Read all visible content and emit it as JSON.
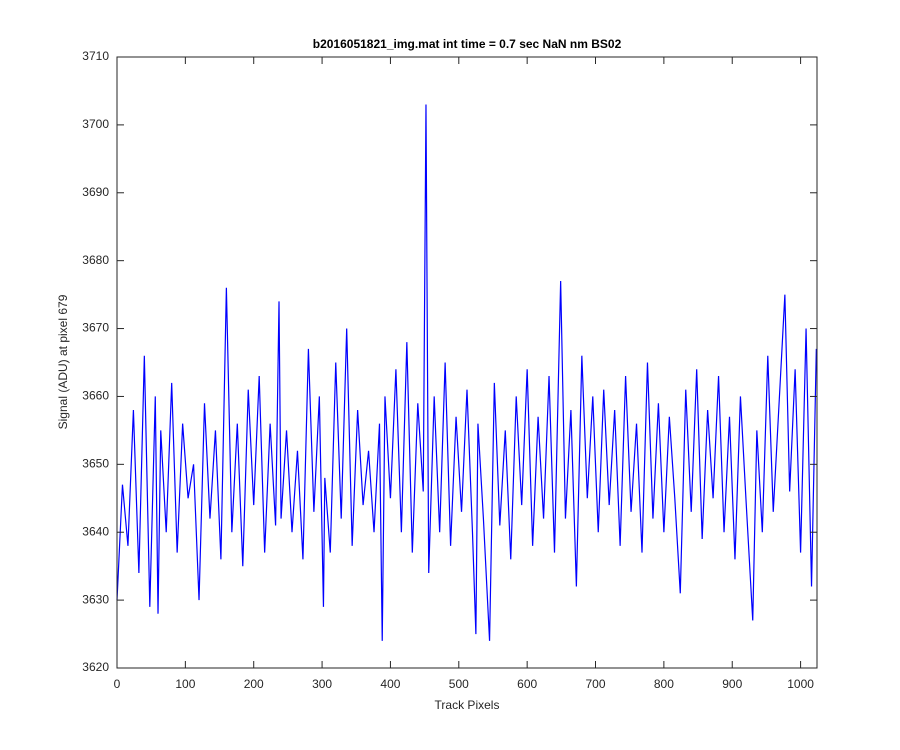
{
  "chart_data": {
    "type": "line",
    "title": "b2016051821_img.mat int time = 0.7 sec  NaN nm BS02",
    "xlabel": "Track Pixels",
    "ylabel": "Signal (ADU) at pixel 679",
    "x": [
      0,
      8,
      16,
      24,
      32,
      40,
      48,
      56,
      60,
      64,
      72,
      80,
      88,
      96,
      104,
      112,
      120,
      128,
      136,
      144,
      152,
      160,
      168,
      176,
      184,
      192,
      200,
      208,
      216,
      224,
      232,
      237,
      240,
      248,
      256,
      264,
      272,
      280,
      288,
      296,
      302,
      304,
      312,
      320,
      328,
      336,
      344,
      352,
      360,
      368,
      376,
      384,
      388,
      392,
      400,
      408,
      416,
      424,
      432,
      440,
      448,
      452,
      456,
      464,
      472,
      480,
      488,
      496,
      504,
      512,
      520,
      525,
      528,
      536,
      545,
      552,
      560,
      568,
      576,
      584,
      592,
      600,
      608,
      616,
      624,
      632,
      640,
      649,
      656,
      664,
      672,
      680,
      688,
      696,
      704,
      712,
      720,
      728,
      736,
      744,
      752,
      760,
      768,
      776,
      784,
      792,
      800,
      808,
      816,
      824,
      832,
      840,
      848,
      856,
      864,
      872,
      880,
      888,
      896,
      904,
      912,
      920,
      930,
      936,
      944,
      952,
      960,
      968,
      977,
      984,
      992,
      1000,
      1008,
      1016,
      1023
    ],
    "series": [
      {
        "color": "#0000ff",
        "values": [
          3630,
          3647,
          3638,
          3658,
          3634,
          3666,
          3629,
          3660,
          3628,
          3655,
          3640,
          3662,
          3637,
          3656,
          3645,
          3650,
          3630,
          3659,
          3642,
          3655,
          3636,
          3676,
          3640,
          3656,
          3635,
          3661,
          3644,
          3663,
          3637,
          3656,
          3641,
          3674,
          3642,
          3655,
          3640,
          3652,
          3636,
          3667,
          3643,
          3660,
          3629,
          3648,
          3637,
          3665,
          3642,
          3670,
          3638,
          3658,
          3644,
          3652,
          3640,
          3656,
          3624,
          3660,
          3645,
          3664,
          3640,
          3668,
          3637,
          3659,
          3646,
          3703,
          3634,
          3660,
          3640,
          3665,
          3638,
          3657,
          3643,
          3661,
          3640,
          3625,
          3656,
          3642,
          3624,
          3662,
          3641,
          3655,
          3636,
          3660,
          3644,
          3664,
          3638,
          3657,
          3642,
          3663,
          3637,
          3677,
          3642,
          3658,
          3632,
          3666,
          3645,
          3660,
          3640,
          3661,
          3644,
          3658,
          3638,
          3663,
          3643,
          3656,
          3637,
          3665,
          3642,
          3659,
          3640,
          3657,
          3645,
          3631,
          3661,
          3643,
          3664,
          3639,
          3658,
          3645,
          3663,
          3640,
          3657,
          3636,
          3660,
          3645,
          3627,
          3655,
          3640,
          3666,
          3643,
          3658,
          3675,
          3646,
          3664,
          3637,
          3670,
          3632,
          3667
        ]
      }
    ],
    "xlim": [
      0,
      1024
    ],
    "xticks": [
      0,
      100,
      200,
      300,
      400,
      500,
      600,
      700,
      800,
      900,
      1000
    ],
    "ylim": [
      3620,
      3710
    ],
    "yticks": [
      3620,
      3630,
      3640,
      3650,
      3660,
      3670,
      3680,
      3690,
      3700,
      3710
    ]
  }
}
